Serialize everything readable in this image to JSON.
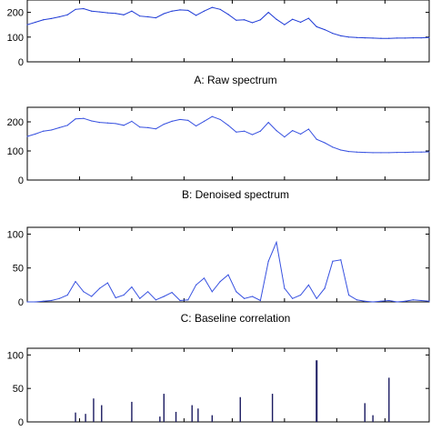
{
  "chart_data": [
    {
      "type": "line",
      "caption": "A: Raw spectrum",
      "ylim": [
        0,
        250
      ],
      "yticks": [
        "0",
        "100",
        "200"
      ],
      "ytick_values": [
        0,
        100,
        200
      ],
      "xlim": [
        0,
        100
      ],
      "color": "#1f3bd6",
      "series": [
        {
          "x": [
            0,
            2,
            4,
            6,
            8,
            10,
            12,
            14,
            16,
            18,
            20,
            22,
            24,
            26,
            28,
            30,
            32,
            34,
            36,
            38,
            40,
            42,
            44,
            46,
            48,
            50,
            52,
            54,
            56,
            58,
            60,
            62,
            64,
            66,
            68,
            70,
            72,
            74,
            76,
            78,
            80,
            82,
            84,
            86,
            88,
            90,
            92,
            94,
            96,
            98,
            100
          ],
          "values": [
            150,
            160,
            170,
            175,
            182,
            190,
            212,
            215,
            205,
            202,
            198,
            196,
            190,
            205,
            185,
            182,
            178,
            195,
            205,
            210,
            208,
            188,
            205,
            220,
            212,
            192,
            168,
            170,
            158,
            170,
            200,
            172,
            150,
            172,
            160,
            176,
            142,
            130,
            115,
            105,
            100,
            98,
            97,
            96,
            95,
            95,
            96,
            96,
            97,
            97,
            98
          ]
        }
      ]
    },
    {
      "type": "line",
      "caption": "B: Denoised spectrum",
      "ylim": [
        0,
        250
      ],
      "yticks": [
        "0",
        "100",
        "200"
      ],
      "ytick_values": [
        0,
        100,
        200
      ],
      "xlim": [
        0,
        100
      ],
      "color": "#3650e0",
      "series": [
        {
          "x": [
            0,
            2,
            4,
            6,
            8,
            10,
            12,
            14,
            16,
            18,
            20,
            22,
            24,
            26,
            28,
            30,
            32,
            34,
            36,
            38,
            40,
            42,
            44,
            46,
            48,
            50,
            52,
            54,
            56,
            58,
            60,
            62,
            64,
            66,
            68,
            70,
            72,
            74,
            76,
            78,
            80,
            82,
            84,
            86,
            88,
            90,
            92,
            94,
            96,
            98,
            100
          ],
          "values": [
            150,
            158,
            168,
            172,
            180,
            188,
            210,
            212,
            203,
            198,
            196,
            194,
            188,
            202,
            182,
            180,
            176,
            192,
            202,
            208,
            205,
            186,
            202,
            218,
            208,
            188,
            165,
            168,
            156,
            168,
            198,
            170,
            148,
            170,
            158,
            175,
            140,
            128,
            113,
            103,
            98,
            96,
            95,
            94,
            94,
            94,
            95,
            95,
            96,
            96,
            97
          ]
        }
      ]
    },
    {
      "type": "line",
      "caption": "C: Baseline correlation",
      "ylim": [
        0,
        110
      ],
      "yticks": [
        "0",
        "50",
        "100"
      ],
      "ytick_values": [
        0,
        50,
        100
      ],
      "xlim": [
        0,
        100
      ],
      "color": "#3650e0",
      "series": [
        {
          "x": [
            0,
            2,
            4,
            6,
            8,
            10,
            12,
            14,
            16,
            18,
            20,
            22,
            24,
            26,
            28,
            30,
            32,
            34,
            36,
            38,
            40,
            42,
            44,
            46,
            48,
            50,
            52,
            54,
            56,
            58,
            60,
            62,
            64,
            66,
            68,
            70,
            72,
            74,
            76,
            78,
            80,
            82,
            84,
            86,
            88,
            90,
            92,
            94,
            96,
            98,
            100
          ],
          "values": [
            0,
            0,
            1,
            2,
            5,
            10,
            30,
            15,
            8,
            20,
            28,
            6,
            10,
            22,
            5,
            15,
            3,
            8,
            14,
            2,
            3,
            25,
            35,
            15,
            30,
            40,
            15,
            5,
            8,
            2,
            60,
            88,
            20,
            5,
            10,
            25,
            5,
            20,
            60,
            62,
            10,
            3,
            1,
            0,
            1,
            2,
            0,
            1,
            3,
            2,
            1
          ]
        }
      ]
    },
    {
      "type": "bar",
      "caption": "",
      "ylim": [
        0,
        110
      ],
      "yticks": [
        "0",
        "50",
        "100"
      ],
      "ytick_values": [
        0,
        50,
        100
      ],
      "xlim": [
        0,
        100
      ],
      "color": "#1a1a60",
      "bars": [
        {
          "x": 12,
          "value": 14
        },
        {
          "x": 14.5,
          "value": 12
        },
        {
          "x": 16.5,
          "value": 35
        },
        {
          "x": 18.5,
          "value": 25
        },
        {
          "x": 26,
          "value": 30
        },
        {
          "x": 33,
          "value": 8
        },
        {
          "x": 34,
          "value": 42
        },
        {
          "x": 37,
          "value": 15
        },
        {
          "x": 41,
          "value": 25
        },
        {
          "x": 42.5,
          "value": 20
        },
        {
          "x": 46,
          "value": 10
        },
        {
          "x": 53,
          "value": 37
        },
        {
          "x": 61,
          "value": 42
        },
        {
          "x": 72,
          "value": 92
        },
        {
          "x": 84,
          "value": 28
        },
        {
          "x": 86,
          "value": 10
        },
        {
          "x": 90,
          "value": 66
        }
      ]
    }
  ]
}
